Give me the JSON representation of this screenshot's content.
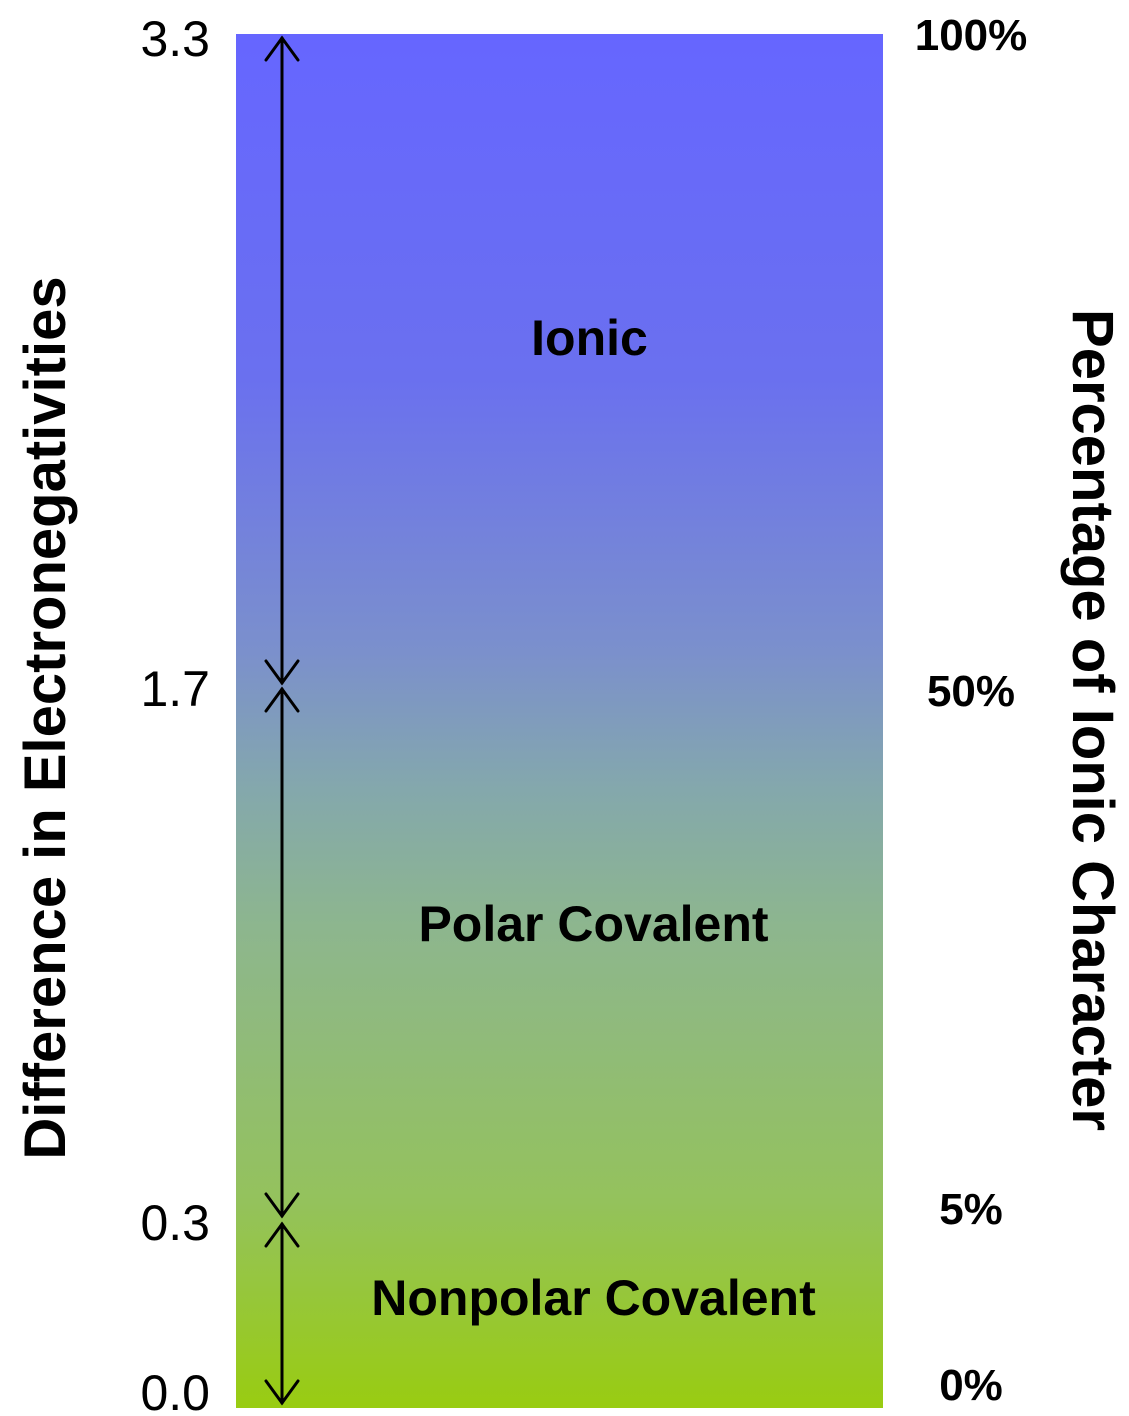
{
  "left_axis": {
    "title": "Difference in Electronegativities",
    "ticks": [
      "3.3",
      "1.7",
      "0.3",
      "0.0"
    ]
  },
  "right_axis": {
    "title": "Percentage of Ionic Character",
    "ticks": [
      "100%",
      "50%",
      "5%",
      "0%"
    ]
  },
  "regions": [
    {
      "label": "Ionic",
      "from": 1.7,
      "to": 3.3
    },
    {
      "label": "Polar Covalent",
      "from": 0.3,
      "to": 1.7
    },
    {
      "label": "Nonpolar Covalent",
      "from": 0.0,
      "to": 0.3
    }
  ],
  "colors": {
    "top": "#6666ff",
    "bottom": "#99cc11",
    "arrow": "#000000"
  }
}
